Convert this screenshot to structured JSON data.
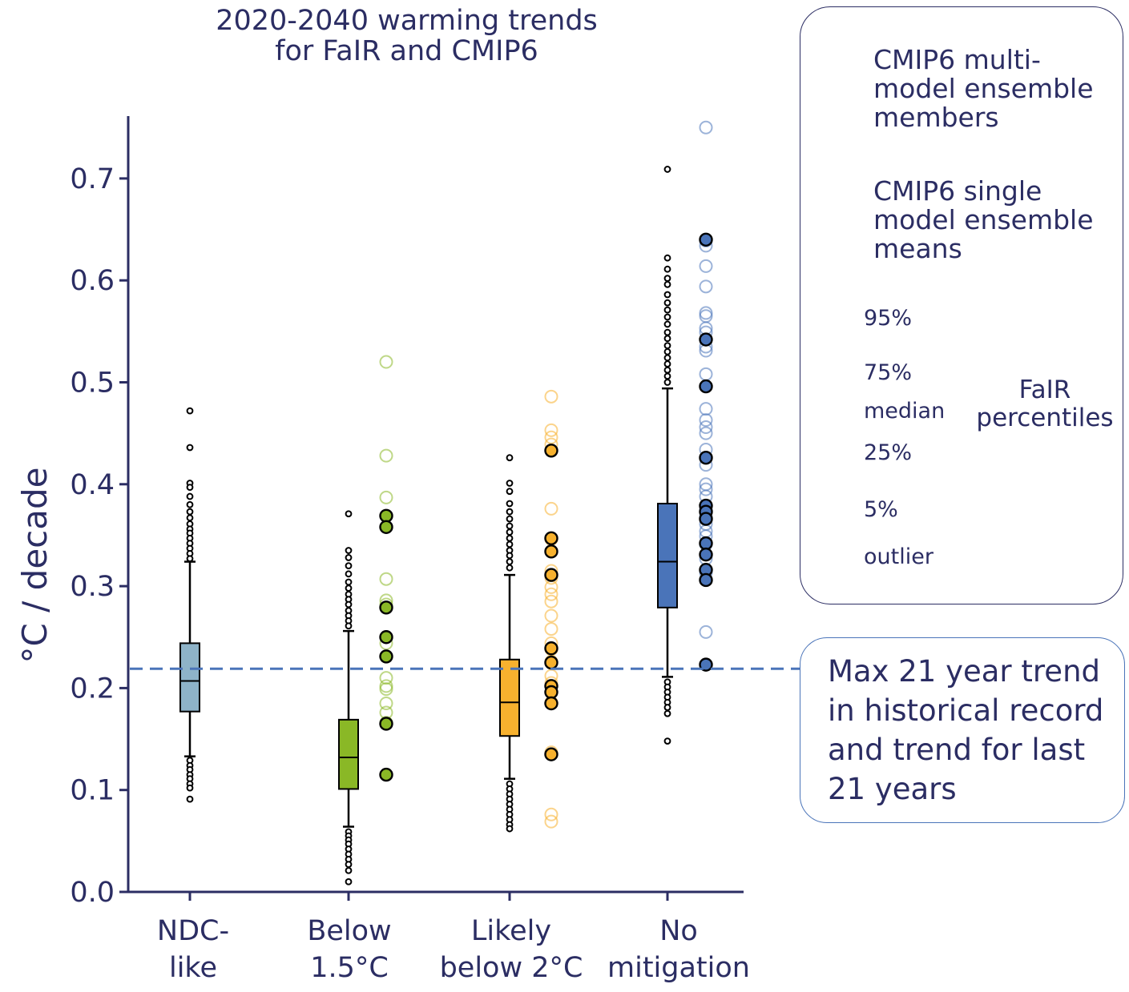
{
  "title_lines": [
    "2020-2040 warming trends",
    "for FaIR and CMIP6"
  ],
  "colors": {
    "text": "#2b2d63",
    "NDC-like": "#8eb3c8",
    "Below 1.5°C": "#8ab826",
    "Likely below 2°C": "#f7b12e",
    "No mitigation": "#4a74b9",
    "reference_line": "#4a74b9"
  },
  "legend": {
    "open_lines": [
      "CMIP6 multi-",
      "model ensemble",
      "members"
    ],
    "filled_lines": [
      "CMIP6 single",
      "model ensemble",
      "means"
    ],
    "pct_95": "95%",
    "pct_75": "75%",
    "pct_median": "median",
    "pct_25": "25%",
    "pct_5": "5%",
    "fair_line1": "FaIR",
    "fair_line2": "percentiles",
    "outlier": "outlier"
  },
  "annotation_lines": [
    "Max 21 year trend",
    "in historical record",
    "and trend for last",
    "21 years"
  ],
  "chart_data": {
    "type": "box",
    "title": "2020-2040 warming trends for FaIR and CMIP6",
    "ylabel": "°C / decade",
    "ylim": [
      0.0,
      0.77
    ],
    "yticks": [
      "0.0",
      "0.1",
      "0.2",
      "0.3",
      "0.4",
      "0.5",
      "0.6",
      "0.7"
    ],
    "reference_line": {
      "y": 0.219,
      "style": "dashed"
    },
    "categories": [
      {
        "name": "NDC-like",
        "label_lines": [
          "NDC-",
          "like"
        ],
        "box": {
          "p5": 0.133,
          "p25": 0.177,
          "median": 0.207,
          "p75": 0.244,
          "p95": 0.324
        },
        "outliers": [
          0.472,
          0.436,
          0.401,
          0.397,
          0.388,
          0.38,
          0.373,
          0.367,
          0.361,
          0.356,
          0.352,
          0.347,
          0.342,
          0.337,
          0.332,
          0.327,
          0.129,
          0.124,
          0.12,
          0.115,
          0.111,
          0.106,
          0.102,
          0.091
        ],
        "cmip6_members": [],
        "cmip6_means": []
      },
      {
        "name": "Below 1.5°C",
        "label_lines": [
          "Below",
          "1.5°C"
        ],
        "box": {
          "p5": 0.064,
          "p25": 0.101,
          "median": 0.132,
          "p75": 0.169,
          "p95": 0.256
        },
        "outliers": [
          0.371,
          0.335,
          0.328,
          0.32,
          0.312,
          0.304,
          0.298,
          0.292,
          0.287,
          0.282,
          0.276,
          0.271,
          0.266,
          0.261,
          0.059,
          0.055,
          0.051,
          0.047,
          0.042,
          0.037,
          0.032,
          0.027,
          0.021,
          0.01
        ],
        "cmip6_members": [
          0.52,
          0.428,
          0.387,
          0.369,
          0.307,
          0.286,
          0.282,
          0.244,
          0.231,
          0.21,
          0.202,
          0.199,
          0.185,
          0.176,
          0.166
        ],
        "cmip6_means": [
          0.369,
          0.358,
          0.279,
          0.25,
          0.231,
          0.165,
          0.115
        ]
      },
      {
        "name": "Likely below 2°C",
        "label_lines": [
          "Likely",
          "below 2°C"
        ],
        "box": {
          "p5": 0.111,
          "p25": 0.153,
          "median": 0.186,
          "p75": 0.228,
          "p95": 0.311
        },
        "outliers": [
          0.426,
          0.401,
          0.393,
          0.381,
          0.373,
          0.366,
          0.359,
          0.353,
          0.347,
          0.341,
          0.335,
          0.33,
          0.324,
          0.318,
          0.106,
          0.101,
          0.096,
          0.091,
          0.086,
          0.081,
          0.076,
          0.071,
          0.066,
          0.062
        ],
        "cmip6_members": [
          0.486,
          0.453,
          0.446,
          0.439,
          0.376,
          0.346,
          0.315,
          0.308,
          0.299,
          0.292,
          0.285,
          0.271,
          0.258,
          0.244,
          0.238,
          0.226,
          0.212,
          0.205,
          0.196,
          0.186,
          0.137,
          0.076,
          0.069
        ],
        "cmip6_means": [
          0.433,
          0.347,
          0.334,
          0.311,
          0.239,
          0.225,
          0.202,
          0.196,
          0.185,
          0.135
        ]
      },
      {
        "name": "No mitigation",
        "label_lines": [
          "No",
          "mitigation"
        ],
        "box": {
          "p5": 0.211,
          "p25": 0.279,
          "median": 0.324,
          "p75": 0.381,
          "p95": 0.494
        },
        "outliers": [
          0.709,
          0.622,
          0.611,
          0.602,
          0.596,
          0.586,
          0.578,
          0.571,
          0.564,
          0.557,
          0.549,
          0.543,
          0.536,
          0.53,
          0.524,
          0.518,
          0.512,
          0.506,
          0.5,
          0.206,
          0.201,
          0.196,
          0.191,
          0.186,
          0.181,
          0.175,
          0.148
        ],
        "cmip6_members": [
          0.75,
          0.639,
          0.634,
          0.614,
          0.594,
          0.568,
          0.565,
          0.553,
          0.549,
          0.535,
          0.531,
          0.508,
          0.474,
          0.463,
          0.456,
          0.45,
          0.434,
          0.419,
          0.4,
          0.395,
          0.388,
          0.375,
          0.368,
          0.361,
          0.354,
          0.349,
          0.341,
          0.327,
          0.313,
          0.306,
          0.255,
          0.223
        ],
        "cmip6_means": [
          0.64,
          0.542,
          0.496,
          0.426,
          0.379,
          0.373,
          0.366,
          0.342,
          0.331,
          0.316,
          0.306,
          0.223
        ]
      }
    ]
  }
}
